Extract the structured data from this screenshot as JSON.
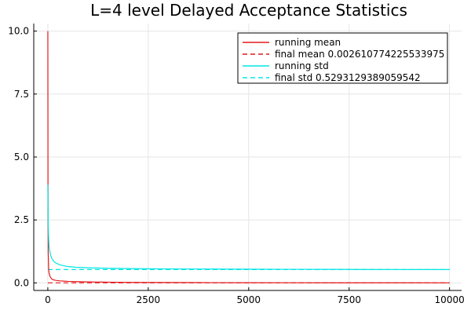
{
  "chart_data": {
    "type": "line",
    "title": "L=4 level Delayed Acceptance Statistics",
    "xlabel": "",
    "ylabel": "",
    "xlim": [
      -350,
      10300
    ],
    "ylim": [
      -0.3,
      10.3
    ],
    "x_ticks": [
      0,
      2500,
      5000,
      7500,
      10000
    ],
    "x_tick_labels": [
      "0",
      "2500",
      "5000",
      "7500",
      "10000"
    ],
    "y_ticks": [
      0,
      2.5,
      5,
      7.5,
      10
    ],
    "y_tick_labels": [
      "0.0",
      "2.5",
      "5.0",
      "7.5",
      "10.0"
    ],
    "grid": true,
    "legend_position": "top-right",
    "series": [
      {
        "name": "running mean",
        "style": "solid",
        "color": "#e41a1c",
        "x": [
          1,
          5,
          10,
          20,
          30,
          50,
          75,
          100,
          150,
          200,
          300,
          400,
          500,
          700,
          1000,
          1500,
          2000,
          3000,
          4000,
          5000,
          6000,
          7000,
          8000,
          9000,
          10000
        ],
        "y": [
          10.0,
          3.0,
          1.2,
          0.6,
          0.4,
          0.28,
          0.2,
          0.15,
          0.12,
          0.1,
          0.08,
          0.07,
          0.06,
          0.05,
          0.04,
          0.03,
          0.02,
          0.015,
          0.01,
          0.008,
          0.006,
          0.005,
          0.004,
          0.003,
          0.0026
        ]
      },
      {
        "name": "final mean 0.002610774225533975",
        "style": "dash",
        "color": "#e41a1c",
        "x": [
          1,
          10000
        ],
        "y": [
          0.002610774225533975,
          0.002610774225533975
        ]
      },
      {
        "name": "running std",
        "style": "solid",
        "color": "#00e5e5",
        "x": [
          1,
          10,
          20,
          30,
          50,
          75,
          100,
          150,
          200,
          300,
          400,
          500,
          700,
          1000,
          1500,
          2000,
          3000,
          4000,
          5000,
          6000,
          7000,
          8000,
          9000,
          10000
        ],
        "y": [
          3.9,
          2.3,
          1.8,
          1.5,
          1.25,
          1.08,
          0.97,
          0.85,
          0.79,
          0.72,
          0.68,
          0.65,
          0.62,
          0.6,
          0.58,
          0.57,
          0.555,
          0.55,
          0.545,
          0.54,
          0.537,
          0.534,
          0.531,
          0.5293
        ]
      },
      {
        "name": "final std 0.5293129389059542",
        "style": "dash",
        "color": "#00e5e5",
        "x": [
          1,
          10000
        ],
        "y": [
          0.5293129389059542,
          0.5293129389059542
        ]
      }
    ]
  }
}
